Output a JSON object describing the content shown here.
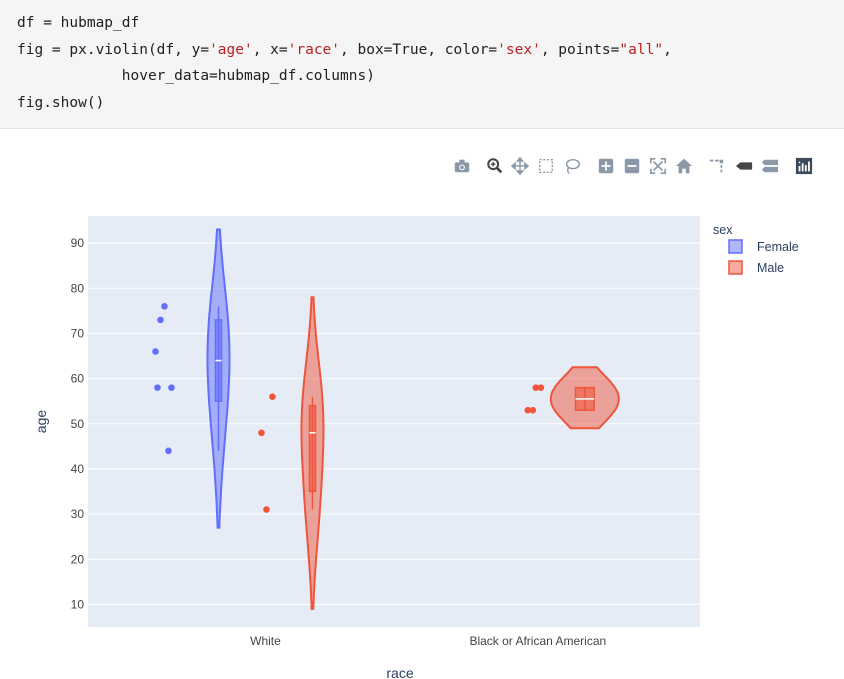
{
  "code": {
    "lines": [
      [
        {
          "t": "df = hubmap_df",
          "s": ""
        }
      ],
      [
        {
          "t": "fig = px.violin(df, y=",
          "s": ""
        },
        {
          "t": "'age'",
          "s": "str"
        },
        {
          "t": ", x=",
          "s": ""
        },
        {
          "t": "'race'",
          "s": "str"
        },
        {
          "t": ", box=True, color=",
          "s": ""
        },
        {
          "t": "'sex'",
          "s": "str"
        },
        {
          "t": ", points=",
          "s": ""
        },
        {
          "t": "\"all\"",
          "s": "str"
        },
        {
          "t": ",",
          "s": ""
        }
      ],
      [
        {
          "t": "            hover_data=hubmap_df.columns)",
          "s": ""
        }
      ],
      [
        {
          "t": "fig.show()",
          "s": ""
        }
      ]
    ]
  },
  "modebar": {
    "icons": [
      "camera-icon",
      "zoom-icon",
      "pan-icon",
      "box-select-icon",
      "lasso-select-icon",
      "zoom-in-icon",
      "zoom-out-icon",
      "autoscale-icon",
      "reset-axes-icon",
      "spike-lines-icon",
      "hover-closest-icon",
      "hover-compare-icon",
      "plotly-logo-icon"
    ]
  },
  "chart_data": {
    "type": "violin",
    "xlabel": "race",
    "ylabel": "age",
    "categories": [
      "White",
      "Black or African American"
    ],
    "yticks": [
      10,
      20,
      30,
      40,
      50,
      60,
      70,
      80,
      90
    ],
    "ylim": [
      5,
      96
    ],
    "grid": true,
    "legend": {
      "title": "sex",
      "position": "top-right"
    },
    "series": [
      {
        "name": "Female",
        "color": "#636efa",
        "groups": [
          {
            "category": "White",
            "points": [
              76,
              73,
              66,
              58,
              58,
              44
            ],
            "violin_range": [
              27,
              93
            ],
            "box": {
              "q1": 55,
              "median": 64,
              "q3": 73,
              "whisker_low": 44,
              "whisker_high": 76
            }
          }
        ]
      },
      {
        "name": "Male",
        "color": "#ef553b",
        "groups": [
          {
            "category": "White",
            "points": [
              56,
              48,
              31
            ],
            "violin_range": [
              9,
              78
            ],
            "box": {
              "q1": 35,
              "median": 48,
              "q3": 54,
              "whisker_low": 31,
              "whisker_high": 56
            }
          },
          {
            "category": "Black or African American",
            "points": [
              58,
              58,
              53,
              53
            ],
            "violin_range": [
              49,
              62.5
            ],
            "box": {
              "q1": 53,
              "median": 55.5,
              "q3": 58,
              "whisker_low": 53,
              "whisker_high": 58
            }
          }
        ]
      }
    ]
  }
}
